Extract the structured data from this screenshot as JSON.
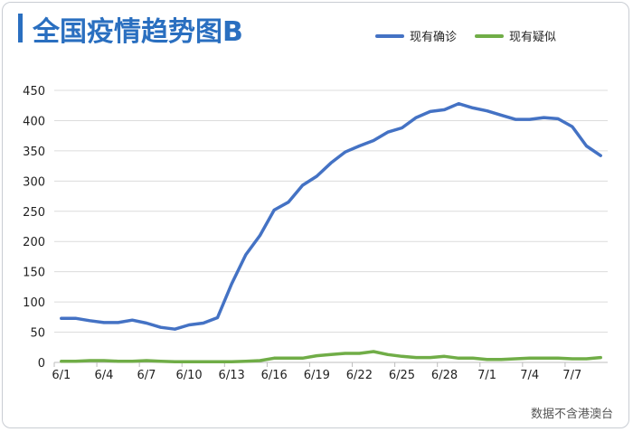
{
  "title": "全国疫情趋势图B",
  "source": "数据不含港澳台",
  "chart_data": {
    "type": "line",
    "x": [
      "6/1",
      "6/2",
      "6/3",
      "6/4",
      "6/5",
      "6/6",
      "6/7",
      "6/8",
      "6/9",
      "6/10",
      "6/11",
      "6/12",
      "6/13",
      "6/14",
      "6/15",
      "6/16",
      "6/17",
      "6/18",
      "6/19",
      "6/20",
      "6/21",
      "6/22",
      "6/23",
      "6/24",
      "6/25",
      "6/26",
      "6/27",
      "6/28",
      "6/29",
      "6/30",
      "7/1",
      "7/2",
      "7/3",
      "7/4",
      "7/5",
      "7/6",
      "7/7",
      "7/8",
      "7/9"
    ],
    "tick_labels": [
      "6/1",
      "6/4",
      "6/7",
      "6/10",
      "6/13",
      "6/16",
      "6/19",
      "6/22",
      "6/25",
      "6/28",
      "7/1",
      "7/4",
      "7/7"
    ],
    "ylim": [
      0,
      450
    ],
    "yticks": [
      0,
      50,
      100,
      150,
      200,
      250,
      300,
      350,
      400,
      450
    ],
    "grid": true,
    "legend_position": "top-right",
    "series": [
      {
        "name": "现有确诊",
        "color": "#4472c4",
        "values": [
          73,
          73,
          69,
          66,
          66,
          70,
          65,
          58,
          55,
          62,
          65,
          74,
          130,
          178,
          210,
          252,
          265,
          293,
          308,
          330,
          348,
          358,
          367,
          381,
          388,
          405,
          415,
          418,
          428,
          421,
          416,
          409,
          402,
          402,
          405,
          403,
          390,
          358,
          342
        ]
      },
      {
        "name": "现有疑似",
        "color": "#70ad47",
        "values": [
          2,
          2,
          3,
          3,
          2,
          2,
          3,
          2,
          1,
          1,
          1,
          1,
          1,
          2,
          3,
          7,
          7,
          7,
          11,
          13,
          15,
          15,
          18,
          13,
          10,
          8,
          8,
          10,
          7,
          7,
          5,
          5,
          6,
          7,
          7,
          7,
          6,
          6,
          8
        ]
      }
    ]
  }
}
